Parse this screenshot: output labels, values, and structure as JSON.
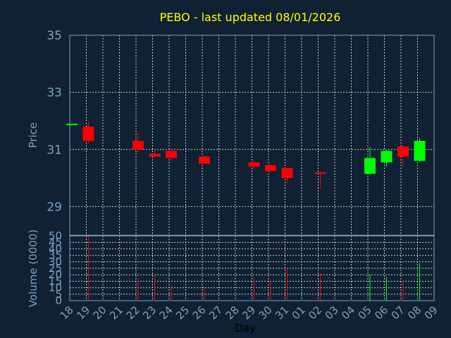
{
  "chart_data": {
    "type": "candlestick",
    "title": "PEBO - last updated 08/01/2026",
    "price_panel": {
      "ylabel": "Price",
      "ylim": [
        28,
        35
      ],
      "yticks": [
        "35",
        "33",
        "31",
        "29"
      ],
      "ytick_values": [
        35,
        33,
        31,
        29
      ]
    },
    "volume_panel": {
      "ylabel": "Volume (0000)",
      "ylim": [
        0,
        50
      ],
      "yticks": [
        "50",
        "45",
        "40",
        "35",
        "30",
        "25",
        "20",
        "15",
        "10",
        "5",
        "0"
      ],
      "ytick_values": [
        50,
        45,
        40,
        35,
        30,
        25,
        20,
        15,
        10,
        5,
        0
      ]
    },
    "xlabel": "Day",
    "x": [
      "18",
      "19",
      "20",
      "21",
      "22",
      "23",
      "24",
      "25",
      "26",
      "27",
      "28",
      "29",
      "30",
      "31",
      "01",
      "02",
      "03",
      "04",
      "05",
      "06",
      "07",
      "08",
      "09"
    ],
    "colors": {
      "up": "#00ff00",
      "down": "#ff0000",
      "title": "#ffff00",
      "axis": "#7f9fbf",
      "background": "#0f2133"
    },
    "candles": [
      {
        "day": "18",
        "open": 31.9,
        "high": 31.9,
        "low": 31.9,
        "close": 31.9,
        "volume": 0
      },
      {
        "day": "19",
        "open": 31.8,
        "high": 32.0,
        "low": 31.2,
        "close": 31.3,
        "volume": 50
      },
      {
        "day": "22",
        "open": 31.3,
        "high": 31.6,
        "low": 30.9,
        "close": 31.0,
        "volume": 17
      },
      {
        "day": "23",
        "open": 30.85,
        "high": 31.0,
        "low": 30.7,
        "close": 30.75,
        "volume": 19
      },
      {
        "day": "24",
        "open": 30.95,
        "high": 31.0,
        "low": 30.6,
        "close": 30.7,
        "volume": 12
      },
      {
        "day": "26",
        "open": 30.75,
        "high": 30.8,
        "low": 30.5,
        "close": 30.5,
        "volume": 11
      },
      {
        "day": "29",
        "open": 30.55,
        "high": 30.6,
        "low": 30.3,
        "close": 30.4,
        "volume": 18
      },
      {
        "day": "30",
        "open": 30.45,
        "high": 30.5,
        "low": 30.2,
        "close": 30.25,
        "volume": 15
      },
      {
        "day": "31",
        "open": 30.35,
        "high": 30.35,
        "low": 29.8,
        "close": 30.0,
        "volume": 25
      },
      {
        "day": "02",
        "open": 30.2,
        "high": 30.25,
        "low": 29.6,
        "close": 30.15,
        "volume": 21
      },
      {
        "day": "05",
        "open": 30.15,
        "high": 31.1,
        "low": 30.1,
        "close": 30.7,
        "volume": 20
      },
      {
        "day": "06",
        "open": 30.55,
        "high": 31.0,
        "low": 30.4,
        "close": 30.95,
        "volume": 18
      },
      {
        "day": "07",
        "open": 31.1,
        "high": 31.15,
        "low": 30.4,
        "close": 30.75,
        "volume": 15
      },
      {
        "day": "08",
        "open": 30.6,
        "high": 31.4,
        "low": 30.55,
        "close": 31.3,
        "volume": 29
      }
    ]
  }
}
